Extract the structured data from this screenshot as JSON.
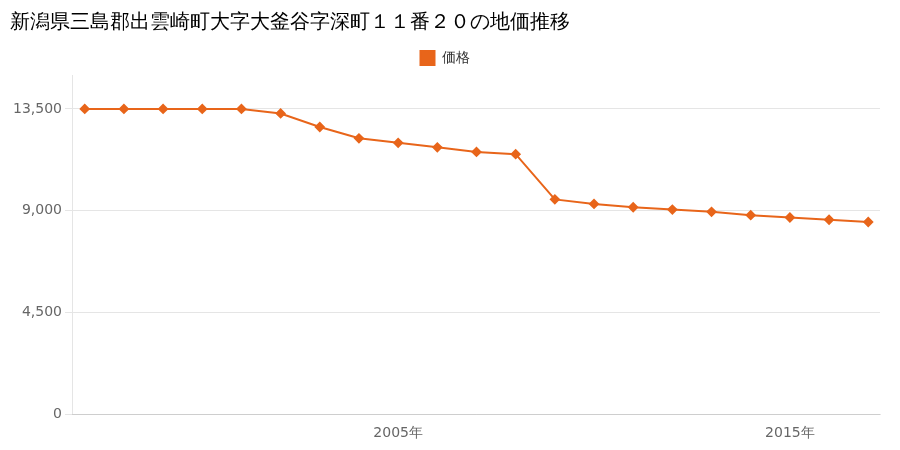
{
  "chart_data": {
    "type": "line",
    "title": "新潟県三島郡出雲崎町大字大釜谷字深町１１番２０の地価推移",
    "x": [
      1997,
      1998,
      1999,
      2000,
      2001,
      2002,
      2003,
      2004,
      2005,
      2006,
      2007,
      2008,
      2009,
      2010,
      2011,
      2012,
      2013,
      2014,
      2015,
      2016,
      2017
    ],
    "series": [
      {
        "name": "価格",
        "color": "#e8651a",
        "marker": "diamond",
        "values": [
          13500,
          13500,
          13500,
          13500,
          13500,
          13300,
          12700,
          12200,
          12000,
          11800,
          11600,
          11500,
          9500,
          9300,
          9150,
          9050,
          8950,
          8800,
          8700,
          8600,
          8500
        ]
      }
    ],
    "xlim": [
      1996.7,
      2017.3
    ],
    "xticks": [
      {
        "value": 2005,
        "label": "2005年"
      },
      {
        "value": 2015,
        "label": "2015年"
      }
    ],
    "ylim": [
      0,
      15000
    ],
    "yticks": [
      0,
      {
        "value": 4500,
        "label": "4,500"
      },
      {
        "value": 9000,
        "label": "9,000"
      },
      {
        "value": 13500,
        "label": "13,500"
      }
    ],
    "grid": "y",
    "legend": "top"
  }
}
